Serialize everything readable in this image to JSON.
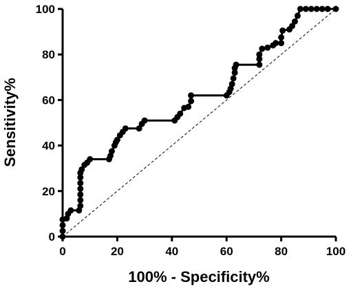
{
  "chart_data": {
    "type": "line",
    "xlabel": "100% - Specificity%",
    "ylabel": "Sensitivity%",
    "xlim": [
      0,
      100
    ],
    "ylim": [
      0,
      100
    ],
    "xticks": [
      0,
      20,
      40,
      60,
      80,
      100
    ],
    "yticks": [
      0,
      20,
      40,
      60,
      80,
      100
    ],
    "grid": false,
    "series": [
      {
        "color": "#000000",
        "markers": true,
        "dashed": false,
        "x": [
          0,
          0,
          0,
          0,
          1.5,
          2,
          3,
          6,
          6.5,
          6.5,
          6.5,
          6.5,
          6.5,
          6.5,
          6.5,
          7,
          8,
          9,
          10,
          17,
          17.5,
          18,
          19,
          19.5,
          20,
          21,
          22,
          23,
          28,
          29,
          30,
          41,
          42,
          43,
          44.5,
          46,
          47,
          47,
          60,
          61,
          61.5,
          62,
          62.5,
          63,
          63,
          63.5,
          72,
          72,
          72,
          73,
          75,
          77,
          78,
          80,
          80,
          80.5,
          83,
          84,
          85,
          86,
          87,
          89,
          91,
          93,
          95,
          97,
          100
        ],
        "values": [
          0,
          2.5,
          5,
          7.5,
          8,
          10,
          11.5,
          11.5,
          13.5,
          16,
          18.5,
          21,
          23.5,
          26,
          28,
          29.5,
          31.5,
          32.5,
          34,
          34,
          35.5,
          37.5,
          40,
          41.5,
          42.5,
          44.5,
          46,
          47.5,
          47.5,
          49.5,
          51,
          51,
          52.5,
          54,
          56.5,
          57,
          59.5,
          62,
          62,
          63.5,
          65,
          67,
          69.5,
          72,
          74,
          75.5,
          75.5,
          78,
          80,
          82.5,
          83,
          84,
          85,
          85,
          87.5,
          90.5,
          91,
          92.5,
          94.5,
          97,
          100,
          100,
          100,
          100,
          100,
          100,
          100
        ]
      },
      {
        "color": "#000000",
        "markers": false,
        "dashed": true,
        "x": [
          0,
          100
        ],
        "values": [
          0,
          100
        ]
      }
    ]
  }
}
